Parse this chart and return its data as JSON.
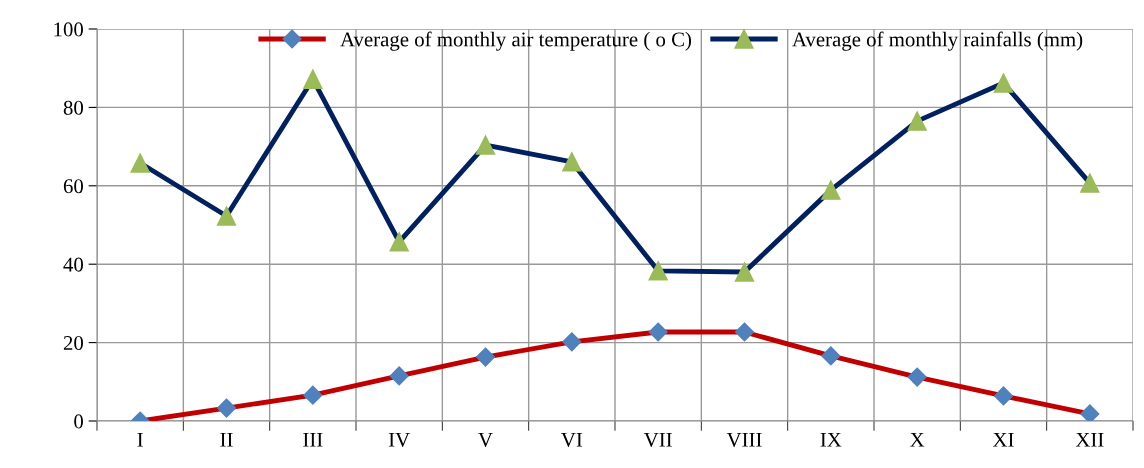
{
  "chart_data": {
    "type": "line",
    "categories": [
      "I",
      "II",
      "III",
      "IV",
      "V",
      "VI",
      "VII",
      "VIII",
      "IX",
      "X",
      "XI",
      "XII"
    ],
    "series": [
      {
        "name": "Average of monthly air temperature ( o C)",
        "color": "#c00000",
        "marker": "diamond",
        "colors": [
          "#4f81bd",
          "#4f81bd",
          "#4f81bd",
          "#4f81bd",
          "#4f81bd",
          "#4f81bd",
          "#4f81bd",
          "#4f81bd",
          "#4f81bd",
          "#4f81bd",
          "#4f81bd",
          "#4f81bd"
        ],
        "values": [
          0,
          3.3,
          6.6,
          11.5,
          16.3,
          20.2,
          22.7,
          22.7,
          16.6,
          11.2,
          6.4,
          1.8
        ]
      },
      {
        "name": "Average of monthly rainfalls (mm)",
        "color": "#002060",
        "marker": "triangle",
        "colors": [
          "#9bbb59",
          "#9bbb59",
          "#9bbb59",
          "#9bbb59",
          "#9bbb59",
          "#9bbb59",
          "#9bbb59",
          "#9bbb59",
          "#9bbb59",
          "#9bbb59",
          "#9bbb59",
          "#9bbb59"
        ],
        "values": [
          65.8,
          52.3,
          87.2,
          45.7,
          70.4,
          66.1,
          38.3,
          38.0,
          58.9,
          76.5,
          86.2,
          60.7
        ]
      }
    ],
    "ylim": [
      0,
      100
    ],
    "yticks": [
      0,
      20,
      40,
      60,
      80,
      100
    ],
    "grid": true,
    "legend": "top",
    "line_style": "solid"
  }
}
